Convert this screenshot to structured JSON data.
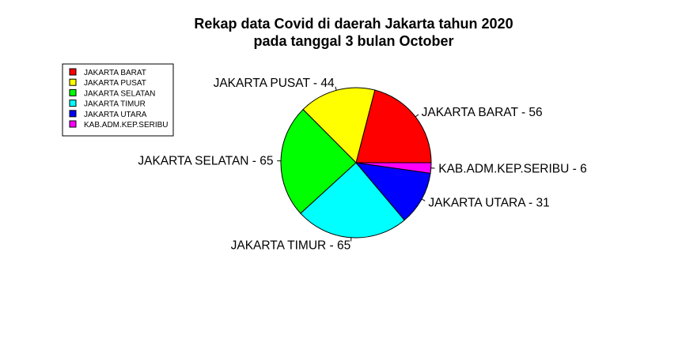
{
  "chart_data": {
    "type": "pie",
    "title_lines": [
      "Rekap data Covid di daerah Jakarta tahun 2020",
      "pada tanggal 3 bulan October"
    ],
    "slices": [
      {
        "name": "JAKARTA BARAT",
        "value": 56,
        "color": "#ff0000",
        "label": "JAKARTA BARAT  -  56"
      },
      {
        "name": "JAKARTA PUSAT",
        "value": 44,
        "color": "#ffff00",
        "label": "JAKARTA PUSAT  -  44"
      },
      {
        "name": "JAKARTA SELATAN",
        "value": 65,
        "color": "#00ff00",
        "label": "JAKARTA SELATAN  -  65"
      },
      {
        "name": "JAKARTA TIMUR",
        "value": 65,
        "color": "#00ffff",
        "label": "JAKARTA TIMUR  -  65"
      },
      {
        "name": "JAKARTA UTARA",
        "value": 31,
        "color": "#0000ff",
        "label": "JAKARTA UTARA  -  31"
      },
      {
        "name": "KAB.ADM.KEP.SERIBU",
        "value": 6,
        "color": "#ff00ff",
        "label": "KAB.ADM.KEP.SERIBU  -  6"
      }
    ],
    "legend": {
      "placement": "top-left",
      "entries": [
        "JAKARTA BARAT",
        "JAKARTA PUSAT",
        "JAKARTA SELATAN",
        "JAKARTA TIMUR",
        "JAKARTA UTARA",
        "KAB.ADM.KEP.SERIBU"
      ]
    },
    "grid": false
  }
}
